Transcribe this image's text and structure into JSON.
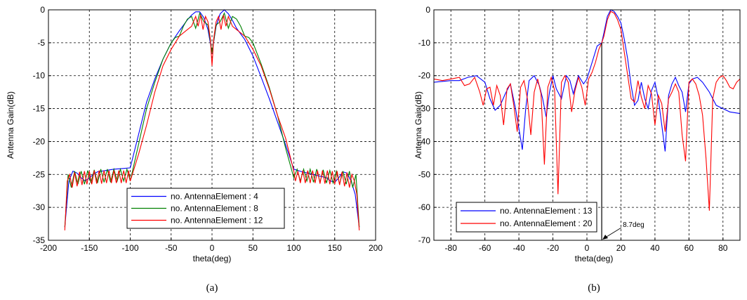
{
  "captions": [
    "(a)",
    "(b)"
  ],
  "chart_data": [
    {
      "type": "line",
      "xlabel": "theta(deg)",
      "ylabel": "Antenna Gain(dB)",
      "xlim": [
        -200,
        200
      ],
      "ylim": [
        -35,
        0
      ],
      "xticks": [
        -200,
        -150,
        -100,
        -50,
        0,
        50,
        100,
        150,
        200
      ],
      "yticks": [
        -35,
        -30,
        -25,
        -20,
        -15,
        -10,
        -5,
        0
      ],
      "grid": true,
      "legend_position": "bottom-right",
      "series": [
        {
          "name": "no. AntennaElement : 4",
          "color": "#0000ff",
          "x": [
            -180,
            -175,
            -170,
            -165,
            -160,
            -155,
            -150,
            -145,
            -140,
            -130,
            -120,
            -110,
            -100,
            -90,
            -80,
            -70,
            -60,
            -50,
            -40,
            -30,
            -25,
            -20,
            -15,
            -10,
            -5,
            0,
            5,
            10,
            15,
            20,
            25,
            30,
            40,
            50,
            60,
            70,
            80,
            90,
            100,
            110,
            120,
            130,
            140,
            145,
            150,
            155,
            160,
            165,
            170,
            175,
            180
          ],
          "y": [
            -33,
            -26,
            -24.5,
            -24.8,
            -25.5,
            -26,
            -25.5,
            -25,
            -24.6,
            -24.4,
            -24.2,
            -24.1,
            -24,
            -19,
            -14,
            -10.5,
            -7.5,
            -5,
            -3.2,
            -1.5,
            -0.8,
            -0.3,
            -0.3,
            -1.2,
            -3,
            -6.5,
            -2.5,
            -0.6,
            0,
            -0.6,
            -1.6,
            -2.8,
            -4.5,
            -7,
            -10.2,
            -13.5,
            -17,
            -20.5,
            -24.2,
            -24.6,
            -24.9,
            -25.2,
            -25.5,
            -26,
            -26.2,
            -25.5,
            -24.6,
            -24.8,
            -26,
            -28,
            -33
          ]
        },
        {
          "name": "no. AntennaElement : 8",
          "color": "#008000",
          "x": [
            -180,
            -176,
            -172,
            -168,
            -164,
            -160,
            -156,
            -152,
            -148,
            -144,
            -140,
            -136,
            -132,
            -128,
            -124,
            -120,
            -116,
            -112,
            -108,
            -104,
            -100,
            -90,
            -80,
            -70,
            -60,
            -50,
            -45,
            -40,
            -35,
            -30,
            -25,
            -20,
            -15,
            -10,
            -5,
            0,
            5,
            10,
            15,
            20,
            25,
            30,
            35,
            40,
            45,
            50,
            60,
            70,
            80,
            90,
            100,
            104,
            108,
            112,
            116,
            120,
            124,
            128,
            132,
            136,
            140,
            144,
            148,
            152,
            156,
            160,
            164,
            168,
            172,
            176,
            180
          ],
          "y": [
            -33,
            -25,
            -27,
            -24.5,
            -26.5,
            -24.5,
            -26.5,
            -24.4,
            -26.3,
            -24.3,
            -26.3,
            -24.2,
            -26.2,
            -24.2,
            -26.2,
            -24.2,
            -26,
            -24.2,
            -26,
            -24.2,
            -26,
            -20.5,
            -15,
            -11,
            -7.5,
            -5,
            -4.2,
            -4,
            -2.5,
            -1.4,
            -1,
            -2.8,
            -0.5,
            -1.8,
            -2.3,
            -6.5,
            -2.3,
            -1.8,
            -0.5,
            -2.8,
            -1,
            -1.4,
            -2.5,
            -4,
            -4.2,
            -5,
            -8.2,
            -11.8,
            -16,
            -21,
            -25.5,
            -24.2,
            -26,
            -24.2,
            -26,
            -24.2,
            -26.2,
            -24.2,
            -26.2,
            -24.3,
            -26.3,
            -24.4,
            -26.3,
            -24.5,
            -26.5,
            -24.5,
            -26.5,
            -24.5,
            -27,
            -25,
            -33
          ]
        },
        {
          "name": "no. AntennaElement : 12",
          "color": "#ff0000",
          "x": [
            -180,
            -177,
            -174,
            -171,
            -168,
            -165,
            -162,
            -159,
            -156,
            -153,
            -150,
            -147,
            -144,
            -141,
            -138,
            -135,
            -132,
            -129,
            -126,
            -123,
            -120,
            -117,
            -114,
            -111,
            -108,
            -105,
            -102,
            -100,
            -90,
            -80,
            -70,
            -60,
            -50,
            -40,
            -30,
            -25,
            -20,
            -17,
            -14,
            -11,
            -8,
            -5,
            -2,
            0,
            2,
            5,
            8,
            11,
            14,
            17,
            20,
            25,
            30,
            40,
            50,
            60,
            70,
            80,
            90,
            100,
            102,
            105,
            108,
            111,
            114,
            117,
            120,
            123,
            126,
            129,
            132,
            135,
            138,
            141,
            144,
            147,
            150,
            153,
            156,
            159,
            162,
            165,
            168,
            171,
            174,
            177,
            180
          ],
          "y": [
            -33.5,
            -26,
            -25,
            -27,
            -24.7,
            -26.8,
            -24.6,
            -26.6,
            -24.5,
            -26.5,
            -24.5,
            -26.5,
            -24.4,
            -26.4,
            -24.4,
            -26.4,
            -24.4,
            -26.3,
            -24.4,
            -26.3,
            -24.4,
            -26.3,
            -24.4,
            -26.3,
            -24.4,
            -26.3,
            -24.4,
            -26,
            -22,
            -17.5,
            -12.5,
            -8.5,
            -6,
            -4,
            -3,
            -2.5,
            -1,
            -2.5,
            -0.8,
            -3,
            -1,
            -1.8,
            -4.5,
            -8.5,
            -4.5,
            -1.8,
            -1,
            -3,
            -0.8,
            -2.5,
            -1,
            -2.5,
            -3,
            -4,
            -6,
            -8.5,
            -12,
            -16,
            -19.5,
            -24.5,
            -26,
            -24.5,
            -26.3,
            -24.4,
            -26.3,
            -24.4,
            -26.3,
            -24.4,
            -26.3,
            -24.4,
            -26.4,
            -24.4,
            -26.4,
            -24.4,
            -26.5,
            -24.5,
            -26.5,
            -24.5,
            -26.6,
            -24.6,
            -26.8,
            -24.7,
            -27,
            -25,
            -26,
            -28,
            -33.5
          ]
        }
      ]
    },
    {
      "type": "line",
      "xlabel": "theta(deg)",
      "ylabel": "Antenna Gain(dB)",
      "xlim": [
        -90,
        90
      ],
      "ylim": [
        -70,
        0
      ],
      "xticks": [
        -80,
        -60,
        -40,
        -20,
        0,
        20,
        40,
        60,
        80
      ],
      "yticks": [
        -70,
        -60,
        -50,
        -40,
        -30,
        -20,
        -10,
        0
      ],
      "grid": true,
      "legend_position": "bottom-left",
      "marker_line_x": 8.7,
      "annotation": "8.7deg",
      "series": [
        {
          "name": "no. AntennaElement : 13",
          "color": "#0000ff",
          "x": [
            -90,
            -80,
            -75,
            -70,
            -65,
            -60,
            -57,
            -54,
            -51,
            -48,
            -45,
            -42,
            -40,
            -38,
            -36,
            -34,
            -31,
            -28,
            -26,
            -24,
            -22,
            -20,
            -18,
            -15,
            -12,
            -10,
            -8,
            -5,
            -2,
            0,
            3,
            6,
            8.7,
            10,
            12,
            14,
            16,
            18,
            20,
            22,
            24,
            26,
            28,
            30,
            32,
            34,
            36,
            38,
            40,
            42,
            44,
            46,
            48,
            50,
            52,
            54,
            56,
            58,
            60,
            62,
            65,
            68,
            72,
            76,
            80,
            84,
            90
          ],
          "y": [
            -22,
            -21.5,
            -21.5,
            -20.5,
            -20,
            -22,
            -27,
            -30.5,
            -29,
            -25.5,
            -22.5,
            -30,
            -36,
            -42.5,
            -30,
            -21.5,
            -20,
            -23,
            -27,
            -32.5,
            -25,
            -20,
            -24,
            -27,
            -20,
            -21.5,
            -25.5,
            -20,
            -22.5,
            -21,
            -16,
            -11,
            -10,
            -7,
            -2,
            0,
            -0.5,
            -2,
            -4,
            -9,
            -15,
            -23,
            -29,
            -27.5,
            -22,
            -27,
            -30,
            -24.5,
            -22,
            -27,
            -35,
            -43,
            -26,
            -22.5,
            -20.5,
            -23,
            -25,
            -31,
            -22.5,
            -21,
            -20.5,
            -22,
            -25,
            -29,
            -30,
            -31,
            -31.5
          ]
        },
        {
          "name": "no. AntennaElement : 20",
          "color": "#ff0000",
          "x": [
            -90,
            -85,
            -80,
            -75,
            -72,
            -69,
            -66,
            -63,
            -61,
            -59,
            -57,
            -55,
            -53,
            -51,
            -49,
            -47,
            -45,
            -43,
            -41,
            -39,
            -37,
            -35,
            -33,
            -31,
            -29,
            -27,
            -25,
            -23,
            -21,
            -19,
            -17,
            -15,
            -13,
            -11,
            -9,
            -7,
            -5,
            -3,
            -1,
            1,
            3,
            5,
            7,
            8.7,
            10,
            12,
            14,
            16,
            18,
            20,
            22,
            24,
            26,
            28,
            30,
            32,
            34,
            36,
            38,
            40,
            42,
            44,
            46,
            48,
            50,
            52,
            54,
            56,
            58,
            60,
            62,
            64,
            66,
            68,
            70,
            72,
            74,
            76,
            78,
            80,
            82,
            84,
            86,
            88,
            90
          ],
          "y": [
            -21,
            -21.5,
            -21,
            -20.5,
            -23,
            -22.5,
            -20.5,
            -25,
            -29,
            -24,
            -23.5,
            -29,
            -23,
            -26,
            -35,
            -24,
            -22.5,
            -29,
            -37,
            -23.5,
            -21.5,
            -27,
            -38,
            -25,
            -21,
            -25.5,
            -47,
            -23.5,
            -20.5,
            -24.5,
            -56,
            -22,
            -20,
            -22,
            -31,
            -24.5,
            -20.5,
            -23.5,
            -29,
            -21,
            -19,
            -16,
            -12,
            -10,
            -8,
            -3,
            -0.5,
            -1,
            -3,
            -6,
            -13,
            -20,
            -27,
            -28,
            -21.5,
            -26.5,
            -30,
            -23,
            -25.5,
            -35,
            -26,
            -28.5,
            -37,
            -27,
            -25,
            -22.5,
            -25,
            -38,
            -46,
            -22,
            -21,
            -22.5,
            -26,
            -32,
            -45,
            -61,
            -27,
            -22,
            -20.5,
            -20,
            -21.5,
            -23.5,
            -24,
            -22,
            -21
          ]
        }
      ]
    }
  ]
}
